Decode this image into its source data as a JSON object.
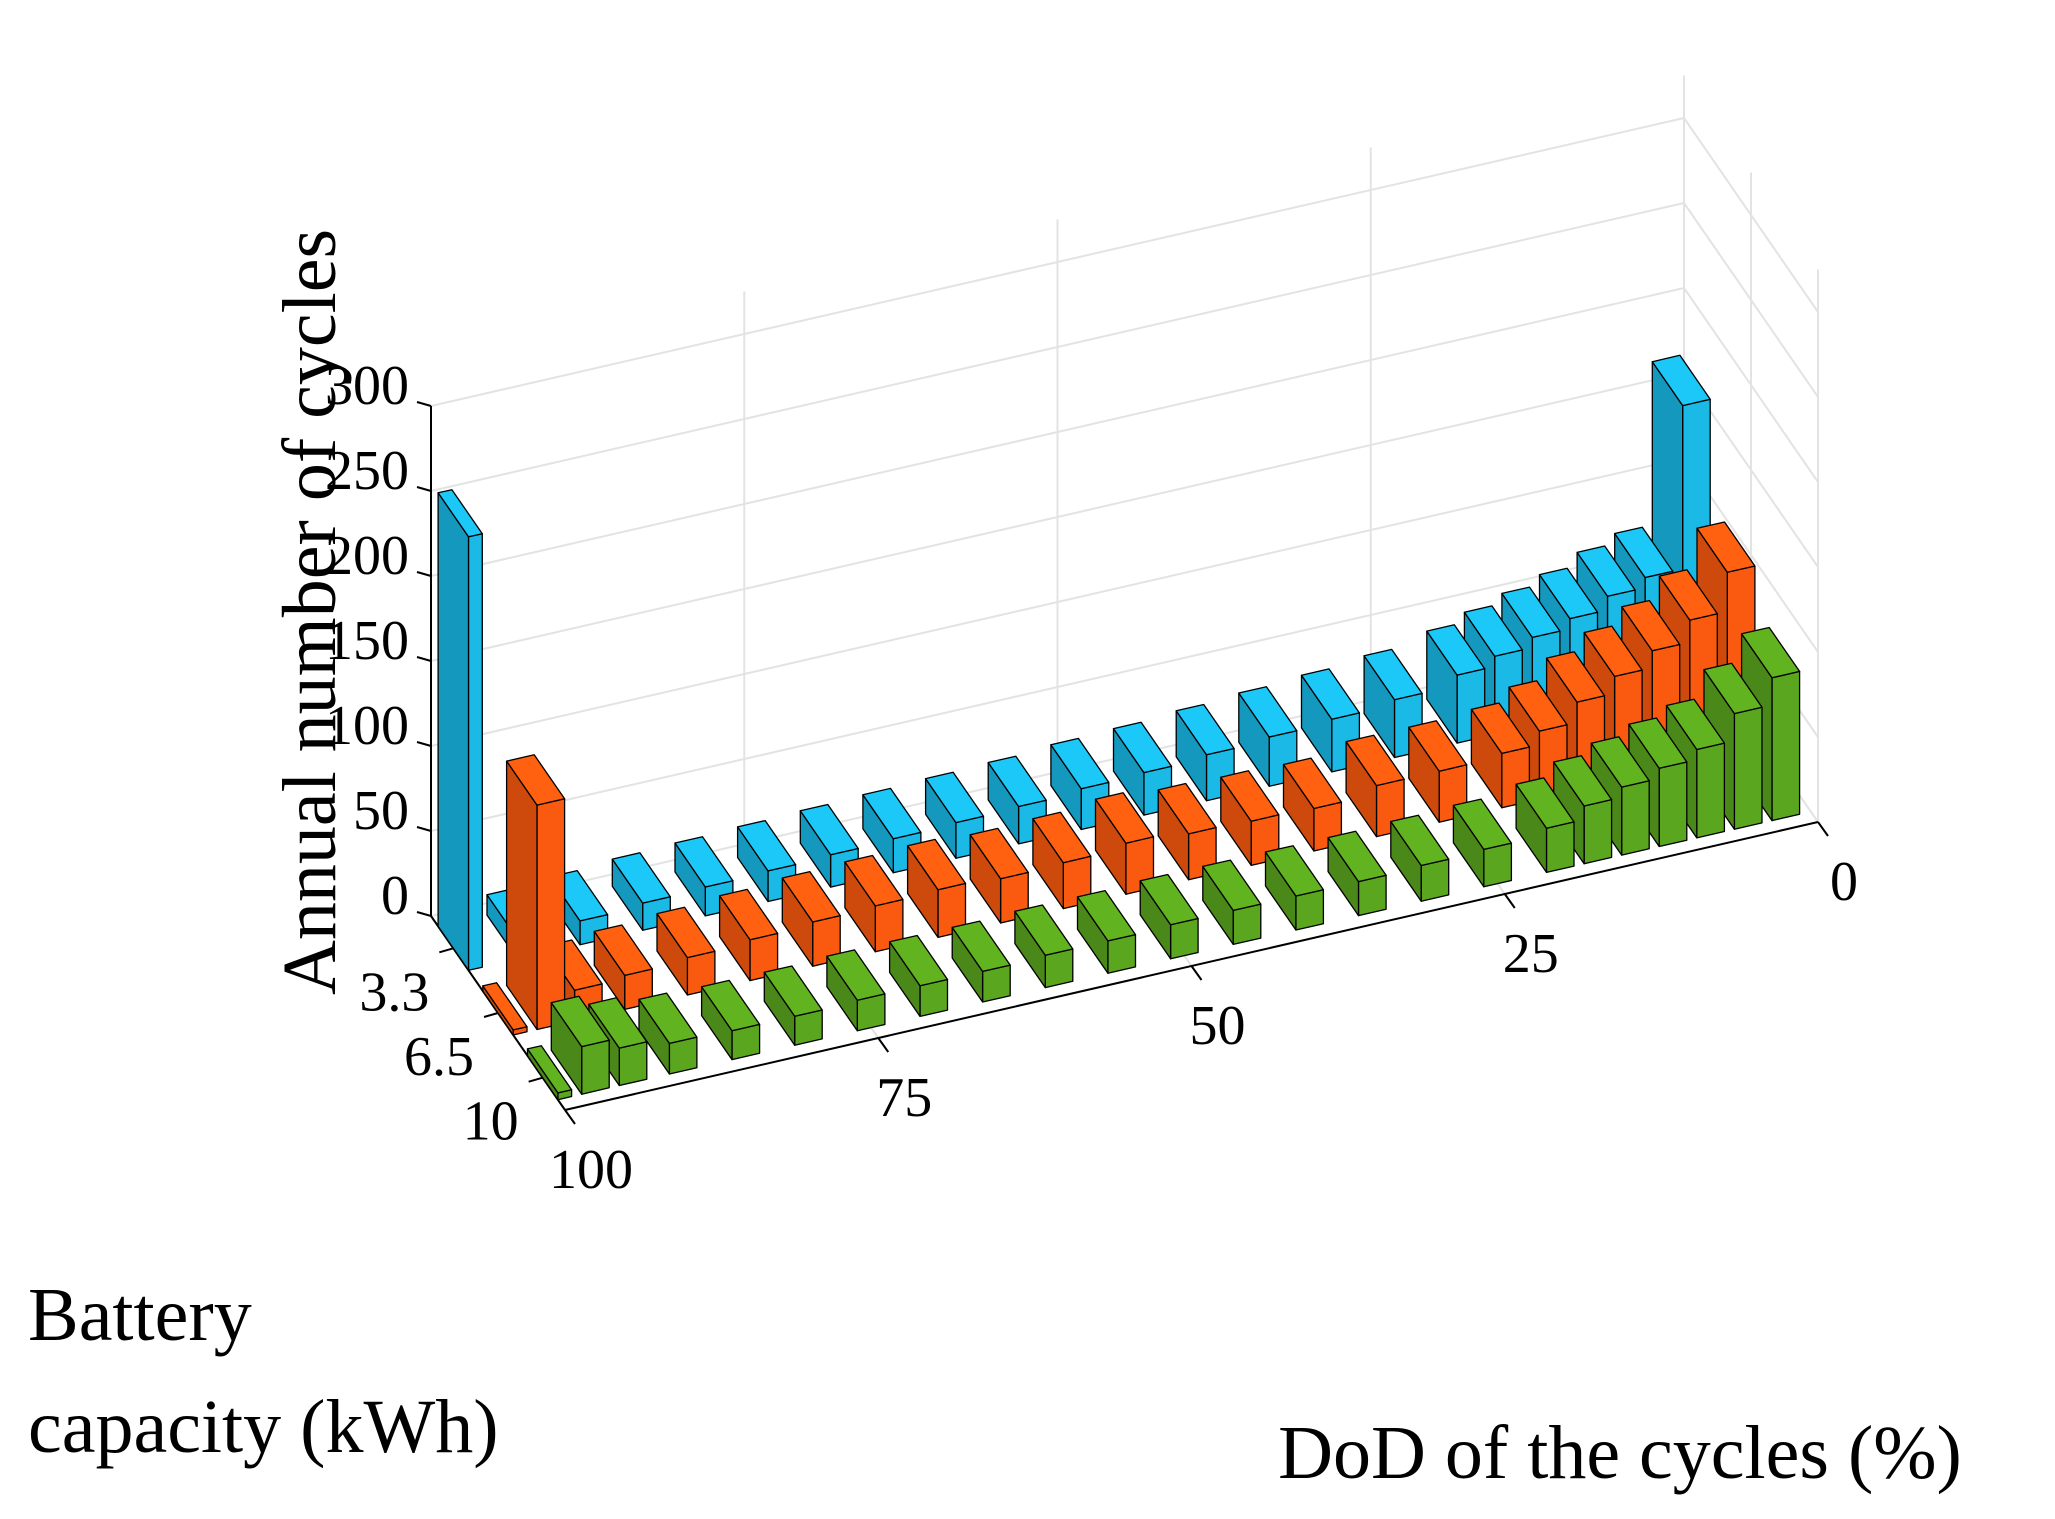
{
  "chart_data": {
    "type": "bar",
    "title": "",
    "xlabel": "DoD of the cycles (%)",
    "ylabel_lines": [
      "Battery",
      "capacity (kWh)"
    ],
    "zlabel": "Annual number of cycles",
    "x_ticks": [
      "100",
      "75",
      "50",
      "25",
      "0"
    ],
    "y_ticks": [
      "3.3",
      "6.5",
      "10"
    ],
    "z_ticks": [
      "0",
      "50",
      "100",
      "150",
      "200",
      "250",
      "300"
    ],
    "xlim": [
      0,
      100
    ],
    "zlim": [
      0,
      300
    ],
    "grid": true,
    "series": [
      {
        "name": "3.3",
        "color": "#1ab9e6",
        "dod": [
          100,
          95,
          90,
          85,
          80,
          75,
          70,
          65,
          60,
          55,
          50,
          45,
          40,
          35,
          30,
          25,
          20,
          17,
          14,
          11,
          8,
          5,
          2
        ],
        "cycles": [
          255,
          12,
          14,
          16,
          17,
          18,
          19,
          20,
          21,
          22,
          24,
          25,
          27,
          29,
          31,
          34,
          40,
          46,
          52,
          58,
          66,
          72,
          168
        ]
      },
      {
        "name": "6.5",
        "color": "#fa5a0f",
        "dod": [
          100,
          97,
          94,
          90,
          85,
          80,
          75,
          70,
          65,
          60,
          55,
          50,
          45,
          40,
          35,
          30,
          25,
          20,
          17,
          14,
          11,
          8,
          5,
          2
        ],
        "cycles": [
          3,
          132,
          18,
          20,
          22,
          24,
          26,
          27,
          28,
          26,
          27,
          30,
          27,
          26,
          25,
          30,
          30,
          32,
          40,
          52,
          62,
          72,
          85,
          108
        ]
      },
      {
        "name": "10",
        "color": "#5aa61e",
        "dod": [
          100,
          97,
          94,
          90,
          85,
          80,
          75,
          70,
          65,
          60,
          55,
          50,
          45,
          40,
          35,
          30,
          25,
          20,
          17,
          14,
          11,
          8,
          5,
          2
        ],
        "cycles": [
          4,
          28,
          22,
          18,
          17,
          17,
          18,
          18,
          18,
          19,
          19,
          20,
          20,
          20,
          20,
          21,
          22,
          26,
          34,
          40,
          46,
          52,
          68,
          84
        ]
      }
    ]
  }
}
